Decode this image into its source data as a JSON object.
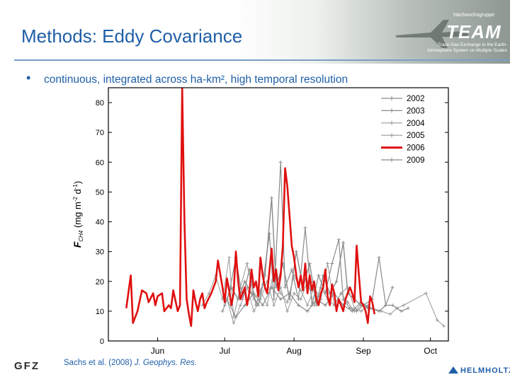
{
  "slide": {
    "title": "Methods: Eddy Covariance",
    "bullet": "continuous, integrated across ha-km², high temporal resolution",
    "citation_prefix": "Sachs et al. (2008) ",
    "citation_journal": "J. Geophys. Res.",
    "team_label": "TEAM",
    "team_small": "Nachwuchsgruppe",
    "team_sub_1": "Trace Gas Exchange in the Earth-",
    "team_sub_2": "Atmosphere System on Multiple Scales",
    "footer_logo": "GFZ",
    "helmholtz_text": "HELMHOLTZ"
  },
  "chart_data": {
    "type": "line",
    "ylabel": "F_CH4 (mg m-2 d-1)",
    "ylim": [
      0,
      85
    ],
    "yticks": [
      0,
      10,
      20,
      30,
      40,
      50,
      60,
      70,
      80
    ],
    "xlim": [
      144,
      296
    ],
    "xticks": [
      {
        "label": "Jun",
        "day": 166
      },
      {
        "label": "Jul",
        "day": 196
      },
      {
        "label": "Aug",
        "day": 227
      },
      {
        "label": "Sep",
        "day": 258
      },
      {
        "label": "Oct",
        "day": 288
      }
    ],
    "series": [
      {
        "name": "2002",
        "color": "#8a8a8a",
        "width": 1.4,
        "points": [
          [
            196,
            12
          ],
          [
            199,
            18
          ],
          [
            202,
            14
          ],
          [
            205,
            20
          ],
          [
            208,
            16
          ],
          [
            211,
            12
          ],
          [
            214,
            22
          ],
          [
            217,
            48
          ],
          [
            219,
            18
          ],
          [
            222,
            26
          ],
          [
            225,
            14
          ],
          [
            228,
            30
          ],
          [
            231,
            18
          ],
          [
            234,
            26
          ],
          [
            237,
            12
          ],
          [
            240,
            22
          ],
          [
            243,
            16
          ],
          [
            246,
            20
          ],
          [
            249,
            33
          ],
          [
            251,
            16
          ],
          [
            254,
            14
          ],
          [
            257,
            12
          ],
          [
            260,
            11
          ]
        ]
      },
      {
        "name": "2003",
        "color": "#8a8a8a",
        "width": 1.2,
        "points": [
          [
            195,
            10
          ],
          [
            198,
            16
          ],
          [
            201,
            28
          ],
          [
            204,
            14
          ],
          [
            207,
            24
          ],
          [
            210,
            12
          ],
          [
            213,
            19
          ],
          [
            216,
            36
          ],
          [
            218,
            14
          ],
          [
            221,
            60
          ],
          [
            223,
            18
          ],
          [
            226,
            24
          ],
          [
            229,
            14
          ],
          [
            232,
            38
          ],
          [
            235,
            12
          ],
          [
            238,
            22
          ],
          [
            241,
            16
          ],
          [
            244,
            26
          ],
          [
            247,
            34
          ],
          [
            249,
            14
          ],
          [
            252,
            11
          ],
          [
            255,
            10
          ],
          [
            258,
            12
          ],
          [
            262,
            14
          ],
          [
            265,
            28
          ],
          [
            268,
            12
          ],
          [
            271,
            18
          ]
        ]
      },
      {
        "name": "2004",
        "color": "#9a9a9a",
        "width": 1.0,
        "points": [
          [
            186,
            12
          ],
          [
            189,
            16
          ],
          [
            192,
            22
          ],
          [
            195,
            14
          ],
          [
            198,
            28
          ],
          [
            200,
            8
          ],
          [
            203,
            18
          ],
          [
            206,
            26
          ],
          [
            209,
            14
          ],
          [
            212,
            17
          ],
          [
            215,
            12
          ],
          [
            218,
            24
          ],
          [
            221,
            16
          ],
          [
            224,
            13
          ],
          [
            227,
            22
          ],
          [
            230,
            17
          ],
          [
            233,
            12
          ],
          [
            236,
            18
          ],
          [
            239,
            14
          ],
          [
            242,
            26
          ],
          [
            245,
            12
          ],
          [
            248,
            16
          ],
          [
            251,
            18
          ],
          [
            254,
            11
          ],
          [
            257,
            10
          ],
          [
            260,
            12
          ]
        ]
      },
      {
        "name": "2005",
        "color": "#9a9a9a",
        "width": 1.0,
        "points": [
          [
            197,
            14
          ],
          [
            200,
            6
          ],
          [
            203,
            12
          ],
          [
            206,
            18
          ],
          [
            209,
            10
          ],
          [
            212,
            14
          ],
          [
            215,
            20
          ],
          [
            218,
            12
          ],
          [
            221,
            18
          ],
          [
            224,
            10
          ],
          [
            227,
            16
          ],
          [
            230,
            14
          ],
          [
            233,
            20
          ],
          [
            236,
            12
          ],
          [
            239,
            18
          ],
          [
            242,
            14
          ],
          [
            245,
            12
          ],
          [
            248,
            16
          ],
          [
            251,
            13
          ],
          [
            254,
            10
          ],
          [
            257,
            12
          ],
          [
            262,
            11
          ],
          [
            266,
            10
          ],
          [
            270,
            9
          ],
          [
            273,
            11
          ],
          [
            276,
            12
          ],
          [
            286,
            16
          ],
          [
            291,
            7
          ],
          [
            294,
            5
          ]
        ]
      },
      {
        "name": "2006",
        "color": "#e01010",
        "width": 2.6,
        "points": [
          [
            152,
            11
          ],
          [
            154,
            22
          ],
          [
            155,
            6
          ],
          [
            157,
            10
          ],
          [
            159,
            17
          ],
          [
            161,
            16
          ],
          [
            162,
            13
          ],
          [
            164,
            16
          ],
          [
            165,
            12
          ],
          [
            166,
            15
          ],
          [
            168,
            16
          ],
          [
            169,
            10
          ],
          [
            171,
            12
          ],
          [
            172,
            11
          ],
          [
            173,
            17
          ],
          [
            175,
            10
          ],
          [
            176,
            12
          ],
          [
            177,
            85
          ],
          [
            178,
            40
          ],
          [
            179,
            14
          ],
          [
            180,
            9
          ],
          [
            181,
            5
          ],
          [
            182,
            17
          ],
          [
            183,
            13
          ],
          [
            184,
            10
          ],
          [
            185,
            14
          ],
          [
            186,
            16
          ],
          [
            187,
            11
          ],
          [
            188,
            13
          ],
          [
            190,
            16
          ],
          [
            192,
            20
          ],
          [
            193,
            27
          ],
          [
            195,
            18
          ],
          [
            196,
            13
          ],
          [
            197,
            21
          ],
          [
            198,
            17
          ],
          [
            199,
            12
          ],
          [
            200,
            16
          ],
          [
            201,
            30
          ],
          [
            202,
            20
          ],
          [
            203,
            14
          ],
          [
            205,
            18
          ],
          [
            206,
            12
          ],
          [
            207,
            16
          ],
          [
            208,
            24
          ],
          [
            209,
            18
          ],
          [
            210,
            20
          ],
          [
            211,
            15
          ],
          [
            212,
            28
          ],
          [
            213,
            22
          ],
          [
            214,
            18
          ],
          [
            215,
            16
          ],
          [
            217,
            31
          ],
          [
            218,
            20
          ],
          [
            219,
            24
          ],
          [
            220,
            17
          ],
          [
            221,
            22
          ],
          [
            222,
            32
          ],
          [
            223,
            58
          ],
          [
            224,
            52
          ],
          [
            225,
            42
          ],
          [
            226,
            32
          ],
          [
            227,
            28
          ],
          [
            228,
            22
          ],
          [
            229,
            18
          ],
          [
            230,
            22
          ],
          [
            231,
            17
          ],
          [
            232,
            26
          ],
          [
            233,
            16
          ],
          [
            234,
            22
          ],
          [
            235,
            17
          ],
          [
            236,
            20
          ],
          [
            237,
            14
          ],
          [
            238,
            12
          ],
          [
            239,
            16
          ],
          [
            240,
            18
          ],
          [
            241,
            24
          ],
          [
            242,
            15
          ],
          [
            243,
            12
          ],
          [
            244,
            19
          ],
          [
            245,
            16
          ],
          [
            246,
            10
          ],
          [
            247,
            14
          ],
          [
            248,
            12
          ],
          [
            249,
            10
          ],
          [
            250,
            14
          ],
          [
            252,
            18
          ],
          [
            253,
            16
          ],
          [
            254,
            13
          ],
          [
            255,
            32
          ],
          [
            256,
            22
          ],
          [
            257,
            13
          ],
          [
            258,
            12
          ],
          [
            259,
            10
          ],
          [
            260,
            6
          ],
          [
            261,
            15
          ],
          [
            262,
            13
          ],
          [
            263,
            9
          ]
        ]
      },
      {
        "name": "2009",
        "color": "#8a8a8a",
        "width": 1.2,
        "points": [
          [
            197,
            14
          ],
          [
            201,
            8
          ],
          [
            205,
            12
          ],
          [
            209,
            16
          ],
          [
            213,
            12
          ],
          [
            217,
            18
          ],
          [
            221,
            14
          ],
          [
            225,
            16
          ],
          [
            229,
            12
          ],
          [
            233,
            10
          ],
          [
            237,
            14
          ],
          [
            241,
            12
          ],
          [
            245,
            16
          ],
          [
            249,
            12
          ],
          [
            253,
            10
          ],
          [
            257,
            13
          ],
          [
            261,
            11
          ],
          [
            265,
            10
          ],
          [
            268,
            12
          ],
          [
            271,
            12
          ],
          [
            275,
            10
          ],
          [
            278,
            11
          ]
        ]
      }
    ]
  }
}
